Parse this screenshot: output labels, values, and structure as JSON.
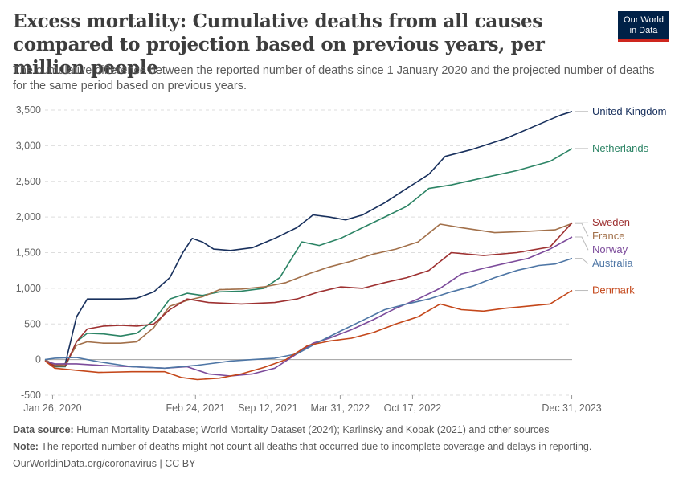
{
  "title": "Excess mortality: Cumulative deaths from all causes compared to projection based on previous years, per million people",
  "subtitle": "The cumulative difference between the reported number of deaths since 1 January 2020 and the projected number of deaths for the same period based on previous years.",
  "logo": {
    "line1": "Our World",
    "line2": "in Data",
    "bg": "#002147",
    "accent": "#ce261e"
  },
  "footer": {
    "source_label": "Data source:",
    "source_text": " Human Mortality Database; World Mortality Dataset (2024); Karlinsky and Kobak (2021) and other sources",
    "note_label": "Note:",
    "note_text": " The reported number of deaths might not count all deaths that occurred due to incomplete coverage and delays in reporting.",
    "license": "OurWorldinData.org/coronavirus | CC BY"
  },
  "chart_data": {
    "type": "line",
    "title": "Excess mortality: Cumulative deaths from all causes compared to projection based on previous years, per million people",
    "ylim": [
      -500,
      3500
    ],
    "yticks": [
      -500,
      0,
      500,
      "1,000",
      "1,500",
      "2,000",
      "2,500",
      "3,000",
      "3,500"
    ],
    "ytick_values": [
      -500,
      0,
      500,
      1000,
      1500,
      2000,
      2500,
      3000,
      3500
    ],
    "xlim": [
      "2020-01-05",
      "2024-01-01"
    ],
    "xticks": [
      {
        "date": "2020-01-26",
        "label": "Jan 26, 2020"
      },
      {
        "date": "2021-02-24",
        "label": "Feb 24, 2021"
      },
      {
        "date": "2021-09-12",
        "label": "Sep 12, 2021"
      },
      {
        "date": "2022-03-31",
        "label": "Mar 31, 2022"
      },
      {
        "date": "2022-10-17",
        "label": "Oct 17, 2022"
      },
      {
        "date": "2023-12-31",
        "label": "Dec 31, 2023"
      }
    ],
    "grid": true,
    "legend": "right",
    "series": [
      {
        "name": "United Kingdom",
        "color": "#18305d",
        "points": [
          [
            "2020-01-05",
            0
          ],
          [
            "2020-02-01",
            -80
          ],
          [
            "2020-03-01",
            -60
          ],
          [
            "2020-04-01",
            600
          ],
          [
            "2020-05-01",
            850
          ],
          [
            "2020-06-15",
            850
          ],
          [
            "2020-08-01",
            850
          ],
          [
            "2020-09-15",
            860
          ],
          [
            "2020-11-01",
            950
          ],
          [
            "2020-12-15",
            1150
          ],
          [
            "2021-01-20",
            1500
          ],
          [
            "2021-02-15",
            1700
          ],
          [
            "2021-03-15",
            1650
          ],
          [
            "2021-04-15",
            1550
          ],
          [
            "2021-06-01",
            1530
          ],
          [
            "2021-08-01",
            1570
          ],
          [
            "2021-10-01",
            1700
          ],
          [
            "2021-12-01",
            1850
          ],
          [
            "2022-01-15",
            2030
          ],
          [
            "2022-03-01",
            2000
          ],
          [
            "2022-04-15",
            1960
          ],
          [
            "2022-06-01",
            2030
          ],
          [
            "2022-08-01",
            2200
          ],
          [
            "2022-10-01",
            2400
          ],
          [
            "2022-12-01",
            2600
          ],
          [
            "2023-01-15",
            2850
          ],
          [
            "2023-04-01",
            2950
          ],
          [
            "2023-07-01",
            3100
          ],
          [
            "2023-10-01",
            3300
          ],
          [
            "2023-12-01",
            3430
          ],
          [
            "2024-01-01",
            3480
          ]
        ]
      },
      {
        "name": "Netherlands",
        "color": "#2c8465",
        "points": [
          [
            "2020-01-05",
            0
          ],
          [
            "2020-02-01",
            -100
          ],
          [
            "2020-03-01",
            -100
          ],
          [
            "2020-04-01",
            250
          ],
          [
            "2020-05-01",
            370
          ],
          [
            "2020-06-15",
            360
          ],
          [
            "2020-08-01",
            330
          ],
          [
            "2020-09-15",
            370
          ],
          [
            "2020-11-01",
            550
          ],
          [
            "2020-12-15",
            850
          ],
          [
            "2021-02-01",
            930
          ],
          [
            "2021-03-15",
            900
          ],
          [
            "2021-05-01",
            950
          ],
          [
            "2021-07-01",
            960
          ],
          [
            "2021-09-01",
            1000
          ],
          [
            "2021-10-15",
            1150
          ],
          [
            "2021-12-15",
            1650
          ],
          [
            "2022-02-01",
            1600
          ],
          [
            "2022-04-01",
            1700
          ],
          [
            "2022-06-01",
            1850
          ],
          [
            "2022-08-01",
            2000
          ],
          [
            "2022-10-01",
            2150
          ],
          [
            "2022-12-01",
            2400
          ],
          [
            "2023-02-01",
            2450
          ],
          [
            "2023-05-01",
            2550
          ],
          [
            "2023-08-01",
            2650
          ],
          [
            "2023-11-01",
            2780
          ],
          [
            "2024-01-01",
            2960
          ]
        ]
      },
      {
        "name": "France",
        "color": "#a2704a",
        "points": [
          [
            "2020-01-05",
            0
          ],
          [
            "2020-02-01",
            -80
          ],
          [
            "2020-03-01",
            -70
          ],
          [
            "2020-04-01",
            200
          ],
          [
            "2020-05-01",
            250
          ],
          [
            "2020-06-15",
            230
          ],
          [
            "2020-08-01",
            230
          ],
          [
            "2020-09-15",
            250
          ],
          [
            "2020-11-01",
            450
          ],
          [
            "2020-12-15",
            750
          ],
          [
            "2021-02-01",
            830
          ],
          [
            "2021-03-15",
            880
          ],
          [
            "2021-05-01",
            980
          ],
          [
            "2021-07-01",
            990
          ],
          [
            "2021-09-01",
            1020
          ],
          [
            "2021-11-01",
            1080
          ],
          [
            "2022-01-01",
            1200
          ],
          [
            "2022-03-01",
            1300
          ],
          [
            "2022-05-01",
            1380
          ],
          [
            "2022-07-01",
            1480
          ],
          [
            "2022-09-01",
            1550
          ],
          [
            "2022-11-01",
            1650
          ],
          [
            "2023-01-01",
            1900
          ],
          [
            "2023-03-01",
            1850
          ],
          [
            "2023-06-01",
            1780
          ],
          [
            "2023-09-01",
            1800
          ],
          [
            "2023-11-15",
            1820
          ],
          [
            "2024-01-01",
            1910
          ]
        ]
      },
      {
        "name": "Sweden",
        "color": "#9e3131",
        "points": [
          [
            "2020-01-05",
            -20
          ],
          [
            "2020-02-01",
            -90
          ],
          [
            "2020-03-01",
            -90
          ],
          [
            "2020-04-01",
            250
          ],
          [
            "2020-05-01",
            430
          ],
          [
            "2020-06-15",
            470
          ],
          [
            "2020-08-01",
            480
          ],
          [
            "2020-09-15",
            470
          ],
          [
            "2020-11-01",
            500
          ],
          [
            "2020-12-15",
            700
          ],
          [
            "2021-02-01",
            850
          ],
          [
            "2021-04-01",
            800
          ],
          [
            "2021-07-01",
            780
          ],
          [
            "2021-10-01",
            800
          ],
          [
            "2021-12-01",
            850
          ],
          [
            "2022-02-01",
            950
          ],
          [
            "2022-04-01",
            1020
          ],
          [
            "2022-06-01",
            1000
          ],
          [
            "2022-08-01",
            1080
          ],
          [
            "2022-10-01",
            1150
          ],
          [
            "2022-12-01",
            1250
          ],
          [
            "2023-02-01",
            1500
          ],
          [
            "2023-05-01",
            1460
          ],
          [
            "2023-08-01",
            1500
          ],
          [
            "2023-11-01",
            1580
          ],
          [
            "2024-01-01",
            1920
          ]
        ]
      },
      {
        "name": "Norway",
        "color": "#7c4b9b",
        "points": [
          [
            "2020-01-05",
            -20
          ],
          [
            "2020-02-01",
            -60
          ],
          [
            "2020-04-01",
            -60
          ],
          [
            "2020-06-01",
            -80
          ],
          [
            "2020-09-01",
            -100
          ],
          [
            "2020-12-01",
            -120
          ],
          [
            "2021-02-01",
            -100
          ],
          [
            "2021-04-01",
            -200
          ],
          [
            "2021-06-01",
            -230
          ],
          [
            "2021-08-01",
            -200
          ],
          [
            "2021-10-01",
            -120
          ],
          [
            "2021-12-01",
            80
          ],
          [
            "2022-01-15",
            230
          ],
          [
            "2022-03-01",
            300
          ],
          [
            "2022-05-01",
            420
          ],
          [
            "2022-07-01",
            560
          ],
          [
            "2022-09-01",
            720
          ],
          [
            "2022-11-01",
            850
          ],
          [
            "2023-01-01",
            1000
          ],
          [
            "2023-03-01",
            1200
          ],
          [
            "2023-05-01",
            1280
          ],
          [
            "2023-07-01",
            1350
          ],
          [
            "2023-09-01",
            1420
          ],
          [
            "2023-11-01",
            1550
          ],
          [
            "2024-01-01",
            1720
          ]
        ]
      },
      {
        "name": "Australia",
        "color": "#4e76a5",
        "points": [
          [
            "2020-01-05",
            0
          ],
          [
            "2020-02-01",
            20
          ],
          [
            "2020-04-01",
            30
          ],
          [
            "2020-06-01",
            -30
          ],
          [
            "2020-09-01",
            -100
          ],
          [
            "2020-12-01",
            -120
          ],
          [
            "2021-03-01",
            -80
          ],
          [
            "2021-06-01",
            -20
          ],
          [
            "2021-08-01",
            0
          ],
          [
            "2021-10-01",
            20
          ],
          [
            "2021-12-01",
            80
          ],
          [
            "2022-02-01",
            250
          ],
          [
            "2022-04-01",
            400
          ],
          [
            "2022-06-01",
            550
          ],
          [
            "2022-08-01",
            700
          ],
          [
            "2022-10-01",
            780
          ],
          [
            "2022-12-01",
            850
          ],
          [
            "2023-02-01",
            950
          ],
          [
            "2023-04-01",
            1030
          ],
          [
            "2023-06-01",
            1150
          ],
          [
            "2023-08-01",
            1250
          ],
          [
            "2023-10-01",
            1320
          ],
          [
            "2023-11-15",
            1340
          ],
          [
            "2024-01-01",
            1420
          ]
        ]
      },
      {
        "name": "Denmark",
        "color": "#c4471a",
        "points": [
          [
            "2020-01-05",
            -20
          ],
          [
            "2020-02-01",
            -120
          ],
          [
            "2020-04-01",
            -150
          ],
          [
            "2020-06-01",
            -180
          ],
          [
            "2020-09-01",
            -170
          ],
          [
            "2020-12-01",
            -170
          ],
          [
            "2021-01-15",
            -250
          ],
          [
            "2021-03-01",
            -280
          ],
          [
            "2021-05-01",
            -260
          ],
          [
            "2021-07-01",
            -200
          ],
          [
            "2021-09-01",
            -110
          ],
          [
            "2021-11-01",
            0
          ],
          [
            "2022-01-01",
            200
          ],
          [
            "2022-03-01",
            260
          ],
          [
            "2022-05-01",
            300
          ],
          [
            "2022-07-01",
            380
          ],
          [
            "2022-09-01",
            500
          ],
          [
            "2022-11-01",
            600
          ],
          [
            "2023-01-01",
            780
          ],
          [
            "2023-03-01",
            700
          ],
          [
            "2023-05-01",
            680
          ],
          [
            "2023-07-01",
            720
          ],
          [
            "2023-09-01",
            750
          ],
          [
            "2023-11-01",
            780
          ],
          [
            "2024-01-01",
            970
          ]
        ]
      }
    ]
  }
}
